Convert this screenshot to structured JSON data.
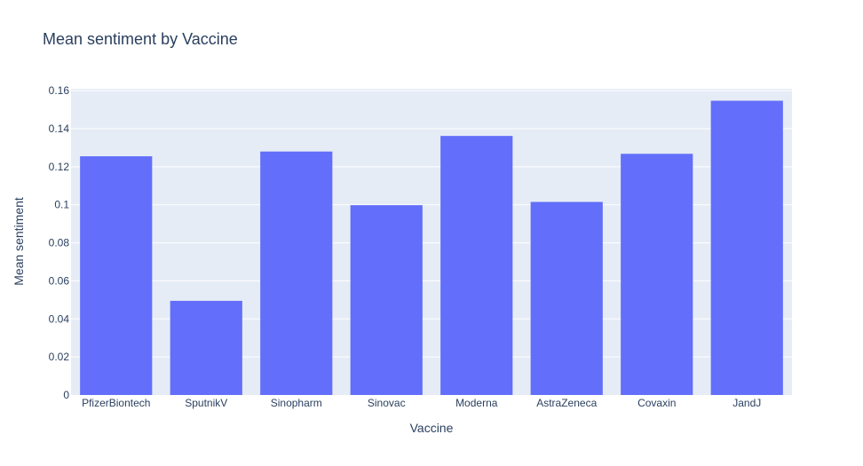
{
  "chart_data": {
    "type": "bar",
    "title": "Mean sentiment by Vaccine",
    "xlabel": "Vaccine",
    "ylabel": "Mean sentiment",
    "categories": [
      "PfizerBiontech",
      "SputnikV",
      "Sinopharm",
      "Sinovac",
      "Moderna",
      "AstraZeneca",
      "Covaxin",
      "JandJ"
    ],
    "values": [
      0.1255,
      0.0495,
      0.128,
      0.0998,
      0.1362,
      0.1015,
      0.1268,
      0.1547
    ],
    "ylim": [
      0,
      0.161
    ],
    "yticks": [
      0,
      0.02,
      0.04,
      0.06,
      0.08,
      0.1,
      0.12,
      0.14,
      0.16
    ],
    "ytick_labels": [
      "0",
      "0.02",
      "0.04",
      "0.06",
      "0.08",
      "0.1",
      "0.12",
      "0.14",
      "0.16"
    ],
    "grid": true,
    "colors": {
      "bar": "#636efa",
      "plot_bg": "#e5ecf6",
      "grid": "#ffffff",
      "text": "#2a3f5f"
    }
  }
}
